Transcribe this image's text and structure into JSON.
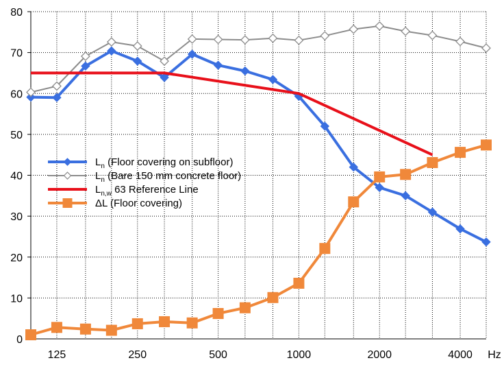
{
  "chart_data": {
    "type": "line",
    "title": "",
    "xlabel": "",
    "ylabel": "",
    "x_unit": "Hz",
    "x_scale": "log",
    "x": [
      100,
      125,
      160,
      200,
      250,
      315,
      400,
      500,
      630,
      800,
      1000,
      1250,
      1600,
      2000,
      2500,
      3150,
      4000,
      5000
    ],
    "x_tick_labels": [
      "125",
      "250",
      "500",
      "1000",
      "2000",
      "4000"
    ],
    "x_tick_values": [
      125,
      250,
      500,
      1000,
      2000,
      4000
    ],
    "ylim": [
      0,
      80
    ],
    "y_ticks": [
      0,
      10,
      20,
      30,
      40,
      50,
      60,
      70,
      80
    ],
    "y_grid": true,
    "legend_position": "center-left",
    "series": [
      {
        "name": "Ln (Floor covering on subfloor)",
        "label_main": "L",
        "label_sub": "n",
        "label_rest": "  (Floor covering on subfloor)",
        "color": "#3a6fe0",
        "marker": "diamond-filled",
        "x": [
          100,
          125,
          160,
          200,
          250,
          315,
          400,
          500,
          630,
          800,
          1000,
          1250,
          1600,
          2000,
          2500,
          3150,
          4000,
          5000
        ],
        "values": [
          59.1,
          59.0,
          66.7,
          70.4,
          67.9,
          63.9,
          69.6,
          66.9,
          65.5,
          63.4,
          59.3,
          52.0,
          42.0,
          37.0,
          35.0,
          31.0,
          26.9,
          23.7
        ]
      },
      {
        "name": "Ln (Bare 150 mm concrete floor)",
        "label_main": "L",
        "label_sub": "n",
        "label_rest": "  (Bare 150 mm concrete floor)",
        "color": "#8c8c8c",
        "marker": "diamond-open",
        "x": [
          100,
          125,
          160,
          200,
          250,
          315,
          400,
          500,
          630,
          800,
          1000,
          1250,
          1600,
          2000,
          2500,
          3150,
          4000,
          5000
        ],
        "values": [
          60.3,
          61.8,
          69.1,
          72.6,
          71.6,
          67.9,
          73.3,
          73.2,
          73.1,
          73.5,
          73.0,
          74.1,
          75.7,
          76.5,
          75.2,
          74.2,
          72.7,
          71.1
        ]
      },
      {
        "name": "Ln,w 63 Reference Line",
        "label_main": "L",
        "label_sub": "n,w",
        "label_rest": "  63 Reference Line",
        "color": "#e8101a",
        "marker": "none",
        "x": [
          100,
          315,
          1000,
          3150
        ],
        "values": [
          65,
          65,
          60,
          45
        ]
      },
      {
        "name": "ΔL (Floor covering)",
        "label_main": "ΔL",
        "label_sub": "",
        "label_rest": "  (Floor covering)",
        "color": "#f0883a",
        "marker": "square-filled",
        "x": [
          100,
          125,
          160,
          200,
          250,
          315,
          400,
          500,
          630,
          800,
          1000,
          1250,
          1600,
          2000,
          2500,
          3150,
          4000,
          5000
        ],
        "values": [
          1.0,
          2.8,
          2.4,
          2.1,
          3.7,
          4.2,
          3.9,
          6.2,
          7.6,
          10.1,
          13.6,
          22.1,
          33.5,
          39.6,
          40.2,
          43.1,
          45.6,
          47.4
        ]
      }
    ]
  }
}
